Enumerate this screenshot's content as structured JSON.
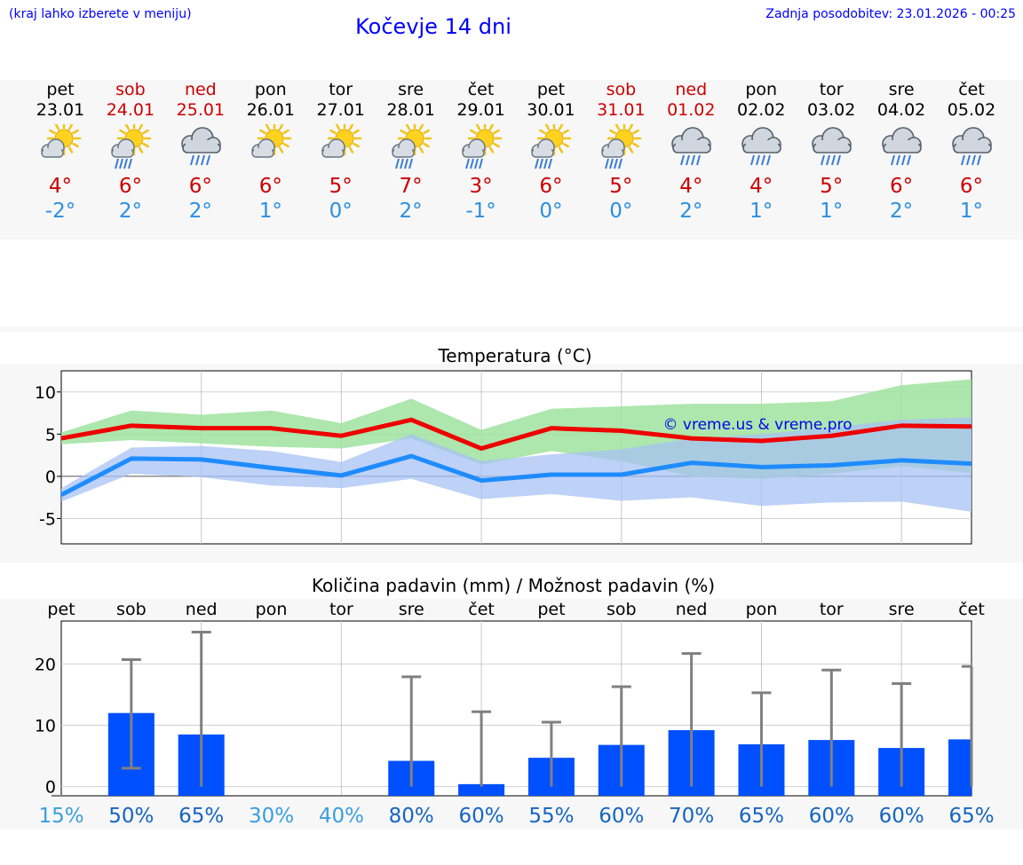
{
  "header": {
    "note": "(kraj lahko izberete v meniju)",
    "title": "Kočevje 14 dni",
    "updated": "Zadnja posodobitev: 23.01.2026 - 00:25"
  },
  "days": [
    {
      "name": "pet",
      "date": "23.01",
      "weekend": false,
      "icon": "sun-cloud-icon",
      "max": "4°",
      "min": "-2°"
    },
    {
      "name": "sob",
      "date": "24.01",
      "weekend": true,
      "icon": "sun-cloud-rain-icon",
      "max": "6°",
      "min": "2°"
    },
    {
      "name": "ned",
      "date": "25.01",
      "weekend": true,
      "icon": "cloud-rain-icon",
      "max": "6°",
      "min": "2°"
    },
    {
      "name": "pon",
      "date": "26.01",
      "weekend": false,
      "icon": "sun-cloud-icon",
      "max": "6°",
      "min": "1°"
    },
    {
      "name": "tor",
      "date": "27.01",
      "weekend": false,
      "icon": "sun-cloud-icon",
      "max": "5°",
      "min": "0°"
    },
    {
      "name": "sre",
      "date": "28.01",
      "weekend": false,
      "icon": "sun-cloud-rain-icon",
      "max": "7°",
      "min": "2°"
    },
    {
      "name": "čet",
      "date": "29.01",
      "weekend": false,
      "icon": "sun-cloud-rain-icon",
      "max": "3°",
      "min": "-1°"
    },
    {
      "name": "pet",
      "date": "30.01",
      "weekend": false,
      "icon": "sun-cloud-rain-icon",
      "max": "6°",
      "min": "0°"
    },
    {
      "name": "sob",
      "date": "31.01",
      "weekend": true,
      "icon": "sun-cloud-rain-icon",
      "max": "5°",
      "min": "0°"
    },
    {
      "name": "ned",
      "date": "01.02",
      "weekend": true,
      "icon": "cloud-rain-icon",
      "max": "4°",
      "min": "2°"
    },
    {
      "name": "pon",
      "date": "02.02",
      "weekend": false,
      "icon": "cloud-rain-icon",
      "max": "4°",
      "min": "1°"
    },
    {
      "name": "tor",
      "date": "03.02",
      "weekend": false,
      "icon": "cloud-rain-icon",
      "max": "5°",
      "min": "1°"
    },
    {
      "name": "sre",
      "date": "04.02",
      "weekend": false,
      "icon": "cloud-rain-icon",
      "max": "6°",
      "min": "2°"
    },
    {
      "name": "čet",
      "date": "05.02",
      "weekend": false,
      "icon": "cloud-rain-icon",
      "max": "6°",
      "min": "1°"
    }
  ],
  "colors": {
    "max_line": "#ee0000",
    "min_line": "#1e8cff",
    "max_band": "#9fe39f",
    "min_band": "#a8c2f4",
    "bar": "#0050ff",
    "error": "#808080",
    "weekend_text": "#cc0000",
    "title_text": "#0000ff"
  },
  "chart_data": [
    {
      "type": "line",
      "title": "Temperatura (°C)",
      "watermark": "© vreme.us & vreme.pro",
      "x": [
        0,
        1,
        2,
        3,
        4,
        5,
        6,
        7,
        8,
        9,
        10,
        11,
        12,
        13
      ],
      "ylim": [
        -8,
        12.5
      ],
      "yticks": [
        10,
        5,
        0,
        -5
      ],
      "series": [
        {
          "name": "max",
          "values": [
            4.5,
            6.0,
            5.7,
            5.7,
            4.8,
            6.7,
            3.3,
            5.7,
            5.4,
            4.5,
            4.2,
            4.8,
            6.0,
            5.9
          ]
        },
        {
          "name": "min",
          "values": [
            -2.2,
            2.1,
            2.0,
            1.0,
            0.1,
            2.4,
            -0.5,
            0.2,
            0.2,
            1.6,
            1.1,
            1.3,
            1.9,
            1.5
          ]
        }
      ],
      "bands": [
        {
          "name": "max_range",
          "upper": [
            5.2,
            7.8,
            7.3,
            7.8,
            6.3,
            9.2,
            5.5,
            8.0,
            8.3,
            8.6,
            8.6,
            8.9,
            10.8,
            11.5
          ],
          "lower": [
            3.8,
            4.3,
            3.9,
            3.5,
            3.3,
            4.5,
            1.4,
            3.0,
            1.8,
            0.0,
            -0.3,
            0.3,
            1.2,
            0.4
          ]
        },
        {
          "name": "min_range",
          "upper": [
            -1.4,
            3.4,
            3.6,
            3.0,
            1.7,
            5.0,
            1.8,
            2.6,
            3.2,
            4.5,
            5.0,
            5.8,
            6.7,
            7.0
          ],
          "lower": [
            -3.0,
            0.3,
            -0.1,
            -1.1,
            -1.4,
            -0.3,
            -2.7,
            -2.1,
            -2.9,
            -2.5,
            -3.5,
            -3.1,
            -3.0,
            -4.2
          ]
        }
      ]
    },
    {
      "type": "bar",
      "title": "Količina padavin (mm) / Možnost padavin (%)",
      "categories": [
        "pet",
        "sob",
        "ned",
        "pon",
        "tor",
        "sre",
        "čet",
        "pet",
        "sob",
        "ned",
        "pon",
        "tor",
        "sre",
        "čet"
      ],
      "values": [
        0,
        12.0,
        8.5,
        0,
        0,
        4.2,
        0.4,
        4.7,
        6.8,
        9.2,
        6.9,
        7.6,
        6.3,
        7.7
      ],
      "error_low": [
        0,
        3.0,
        0,
        0,
        0,
        0,
        0,
        0,
        0,
        0,
        0,
        0,
        0,
        0
      ],
      "error_high": [
        0,
        20.7,
        25.2,
        0,
        0,
        17.9,
        12.2,
        10.5,
        16.3,
        21.7,
        15.3,
        19.0,
        16.8,
        19.6
      ],
      "chance": [
        "15%",
        "50%",
        "65%",
        "30%",
        "40%",
        "80%",
        "60%",
        "55%",
        "60%",
        "70%",
        "65%",
        "60%",
        "60%",
        "65%"
      ],
      "chance_colors": [
        "#3a9ee0",
        "#1565c0",
        "#1565c0",
        "#3a9ee0",
        "#3a9ee0",
        "#1565c0",
        "#1565c0",
        "#1565c0",
        "#1565c0",
        "#1565c0",
        "#1565c0",
        "#1565c0",
        "#1565c0",
        "#1565c0"
      ],
      "ylim": [
        -1.5,
        27
      ],
      "yticks": [
        20,
        10,
        0
      ]
    }
  ]
}
